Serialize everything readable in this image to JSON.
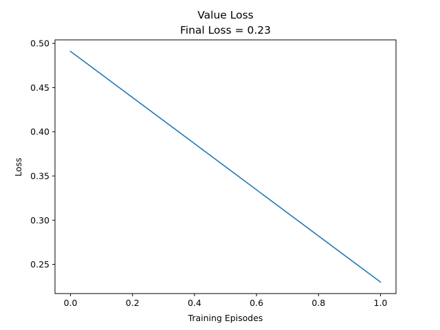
{
  "chart_data": {
    "type": "line",
    "title": "Value Loss",
    "subtitle": "Final Loss = 0.23",
    "xlabel": "Training Episodes",
    "ylabel": "Loss",
    "x": [
      0.0,
      1.0
    ],
    "series": [
      {
        "values": [
          0.491,
          0.23
        ],
        "color": "#1f77b4"
      }
    ],
    "xlim": [
      -0.05,
      1.05
    ],
    "ylim": [
      0.217,
      0.504
    ],
    "xticks": [
      0.0,
      0.2,
      0.4,
      0.6,
      0.8,
      1.0
    ],
    "xtick_labels": [
      "0.0",
      "0.2",
      "0.4",
      "0.6",
      "0.8",
      "1.0"
    ],
    "yticks": [
      0.25,
      0.3,
      0.35,
      0.4,
      0.45,
      0.5
    ],
    "ytick_labels": [
      "0.25",
      "0.30",
      "0.35",
      "0.40",
      "0.45",
      "0.50"
    ],
    "grid": false,
    "legend": "none"
  }
}
